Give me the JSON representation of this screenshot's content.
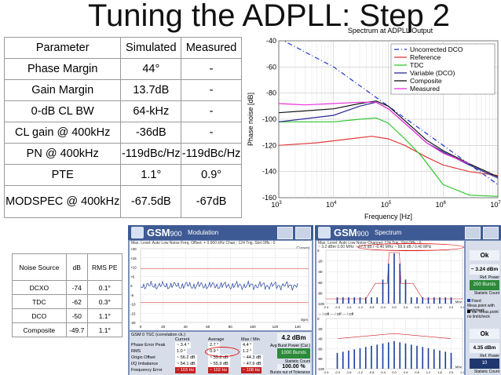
{
  "title": "Tuning the ADPLL: Step 2",
  "params_table": {
    "headers": [
      "Parameter",
      "Simulated",
      "Measured"
    ],
    "rows": [
      [
        "Phase Margin",
        "44°",
        "-"
      ],
      [
        "Gain Margin",
        "13.7dB",
        "-"
      ],
      [
        "0-dB CL BW",
        "64-kHz",
        "-"
      ],
      [
        "CL gain @ 400kHz",
        "-36dB",
        "-"
      ],
      [
        "PN @ 400kHz",
        "-119dBc/Hz",
        "-119dBc/Hz"
      ],
      [
        "PTE",
        "1.1°",
        "0.9°"
      ],
      [
        "MODSPEC @ 400kHz",
        "-67.5dB",
        "-67dB"
      ]
    ]
  },
  "noise_table": {
    "headers": [
      "Noise Source",
      "dB",
      "RMS PE"
    ],
    "rows": [
      [
        "DCXO",
        "-74",
        "0.1°"
      ],
      [
        "TDC",
        "-62",
        "0.3°"
      ],
      [
        "DCO",
        "-50",
        "1.1°"
      ],
      [
        "Composite",
        "-49.7",
        "1.1°"
      ]
    ]
  },
  "chart_data": {
    "type": "line",
    "title": "Spectrum at ADPLL Output",
    "xlabel": "Frequency [Hz]",
    "ylabel": "Phase noise [dB]",
    "x_scale": "log",
    "xlim": [
      1000,
      10000000
    ],
    "ylim": [
      -160,
      -40
    ],
    "yticks": [
      -40,
      -60,
      -80,
      -100,
      -120,
      -140,
      -160
    ],
    "xtick_labels": [
      "10^3",
      "10^4",
      "10^5",
      "10^6",
      "10^7"
    ],
    "grid": true,
    "legend_position": "top-right",
    "series": [
      {
        "name": "Uncorrected DCO",
        "color": "#2233cc",
        "dash": "6,3,1,3",
        "x": [
          1000,
          10000,
          100000,
          1000000,
          10000000
        ],
        "y": [
          -38,
          -60,
          -90,
          -120,
          -150
        ]
      },
      {
        "name": "Reference",
        "color": "#e03a3a",
        "x": [
          1000,
          5000,
          20000,
          50000,
          100000,
          200000,
          500000,
          1000000,
          3000000,
          10000000
        ],
        "y": [
          -120,
          -118,
          -115,
          -113,
          -115,
          -120,
          -129,
          -135,
          -140,
          -143
        ]
      },
      {
        "name": "TDC",
        "color": "#2ec62e",
        "x": [
          1000,
          10000,
          30000,
          60000,
          100000,
          200000,
          400000,
          1000000,
          3000000,
          10000000
        ],
        "y": [
          -102,
          -102,
          -100,
          -99,
          -103,
          -115,
          -128,
          -150,
          -158,
          -159
        ]
      },
      {
        "name": "Variable (DCO)",
        "color": "#2a2a9a",
        "x": [
          1000,
          10000,
          30000,
          60000,
          100000,
          200000,
          500000,
          1000000,
          3000000,
          10000000
        ],
        "y": [
          -102,
          -97,
          -90,
          -87,
          -92,
          -103,
          -118,
          -125,
          -135,
          -145
        ]
      },
      {
        "name": "Composite",
        "color": "#111111",
        "x": [
          1000,
          10000,
          30000,
          60000,
          100000,
          200000,
          500000,
          1000000,
          3000000,
          10000000
        ],
        "y": [
          -95,
          -92,
          -88,
          -86,
          -90,
          -101,
          -116,
          -124,
          -134,
          -144
        ]
      },
      {
        "name": "Measured",
        "color": "#ee33dd",
        "x": [
          1000,
          3000,
          10000,
          30000,
          60000,
          100000,
          200000,
          500000,
          1000000,
          3000000
        ],
        "y": [
          -88,
          -89,
          -88,
          -87,
          -87,
          -92,
          -103,
          -118,
          -126,
          -134
        ]
      }
    ]
  },
  "mod_screen": {
    "header": "GSM",
    "header_suffix": "900",
    "mode": "Modulation",
    "top_line": "Max. Level: Auto   Low Noise  Freq. Offset: + 0.000 kHz  Chan.: 124  Trig. Slot Offs.: 0",
    "current_label": "Current",
    "sym_label": "Sym",
    "y_ticks": [
      "+20",
      "+15",
      "+10",
      "+5",
      "0",
      "-5",
      "-10",
      "-15",
      "-20"
    ],
    "x_ticks": [
      "0",
      "20",
      "40",
      "60",
      "80",
      "100",
      "120",
      "140"
    ],
    "tab_label": "GSM 0  TSC (correlation ck.)",
    "columns": [
      "Current",
      "Average",
      "Max / Min"
    ],
    "rows": [
      {
        "label": "Phase Error  Peak",
        "current": "~ 3.4 °",
        "average": "2.7 °",
        "max": "4.4 °"
      },
      {
        "label": "RMS",
        "current": "1.0 °",
        "average": "0.9 °",
        "max": "1.2 °"
      },
      {
        "label": "Origin Offset",
        "current": "~ 56.2 dB",
        "average": "~ 55.8 dB",
        "max": "~ 44.3 dB"
      },
      {
        "label": "I/Q Imbalance",
        "current": "~ 54.1 dB",
        "average": "~ 55.9 dB",
        "max": "~ 47.9 dB"
      },
      {
        "label": "Frequency Error",
        "current": "~ 103 Hz",
        "average": "~ 102 Hz",
        "max": "~ 108 Hz"
      }
    ],
    "side_power": "4.2 dBm",
    "side_power_label": "Avg Burst Power (Cur.)",
    "side_bursts": "1000 Bursts",
    "side_bursts_label": "Statistic Count",
    "side_tol": "100.00 %",
    "side_tol_label": "Bursts out of Tolerance"
  },
  "spec_screen": {
    "header": "GSM",
    "header_suffix": "900",
    "mode": "Spectrum",
    "top_line": "Max. Level: Auto   Low Noise   Channel: 124  Trig. Slot Offs.: 0",
    "marker_line": "~ 3.2 dBm 0.00 MHz  ~ 67.5 dB / -0.40 MHz  ~ 68.9 dB / 0.40 MHz",
    "ok_label": "Ok",
    "ref_power_1": "~ 3.24 dBm",
    "ref_power_label": "Ref. Power",
    "bursts": "200 Bursts",
    "bursts_label": "Statistic Count",
    "legend_1": "Fixed Meas.point with limitcheck",
    "legend_2": "Var. Meas.point no limitcheck",
    "ok2_label": "Ok",
    "ref_power_2": "4.35 dBm",
    "count2": "10",
    "x_ticks": [
      "-2.4",
      "-2.0",
      "-1.6",
      "-1.2",
      "-0.8",
      "-0.4",
      "0.0",
      "0.4",
      "0.8",
      "1.2",
      "1.6",
      "2.0",
      "2.4"
    ],
    "mhz": "MHz",
    "switch_line": "---  /  Off   ---  /  Off   ---  /  Off"
  }
}
